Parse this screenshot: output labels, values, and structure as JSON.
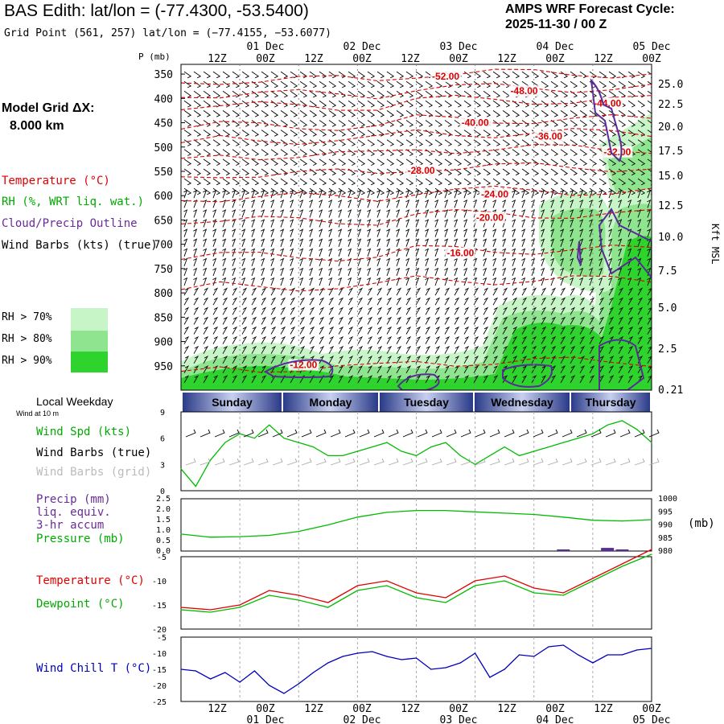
{
  "header": {
    "title": "BAS Edith:  lat/lon = (-77.4300, -53.5400)",
    "subtitle": "Grid Point (561, 257) lat/lon = (−77.4155, −53.6077)",
    "cycle_label": "AMPS WRF Forecast Cycle:",
    "cycle_value": "2025-11-30 / 00  Z"
  },
  "legend": {
    "grid_label": "Model Grid ΔX:",
    "grid_value": "8.000 km",
    "temperature": "Temperature (°C)",
    "rh": "RH (%, WRT liq. wat.)",
    "cloud": "Cloud/Precip Outline",
    "wind": "Wind Barbs (kts) (true)",
    "rh70": "RH > 70%",
    "rh80": "RH > 80%",
    "rh90": "RH > 90%"
  },
  "colors": {
    "temp": "#dd0000",
    "dew": "#00bb00",
    "precip": "#5a2a9a",
    "windchill": "#0000bb",
    "rh70": "#c8f5c8",
    "rh80": "#8fe48f",
    "rh90": "#2ed32e",
    "grid": "#aaaaaa",
    "band_dark": "#2a3a88",
    "band_light": "#c8d0f0"
  },
  "time_axis": {
    "top_hours": [
      "12Z",
      "00Z",
      "12Z",
      "00Z",
      "12Z",
      "00Z",
      "12Z",
      "00Z",
      "12Z",
      "00Z"
    ],
    "top_dates": [
      "01 Dec",
      "02 Dec",
      "03 Dec",
      "04 Dec",
      "05 Dec"
    ],
    "bottom_hours": [
      "12Z",
      "00Z",
      "12Z",
      "00Z",
      "12Z",
      "00Z",
      "12Z",
      "00Z",
      "12Z",
      "00Z"
    ],
    "bottom_dates": [
      "01 Dec",
      "02 Dec",
      "03 Dec",
      "04 Dec",
      "05 Dec"
    ]
  },
  "weekday": {
    "title": "Local Weekday",
    "days": [
      "Sunday",
      "Monday",
      "Tuesday",
      "Wednesday",
      "Thursday"
    ]
  },
  "panels": {
    "sfc_wind_sub": "Wind at 10 m",
    "wind_spd": "Wind Spd (kts)",
    "wind_barbs_true": "Wind Barbs (true)",
    "wind_barbs_grid": "Wind Barbs (grid)",
    "precip_l1": "Precip (mm)",
    "precip_l2": "liq. equiv.",
    "precip_l3": "3-hr accum",
    "pressure": "Pressure (mb)",
    "pressure_unit": "(mb)",
    "temperature": "Temperature (°C)",
    "dewpoint": "Dewpoint (°C)",
    "windchill": "Wind Chill T (°C)"
  },
  "chart_data": [
    {
      "type": "contour",
      "name": "time-height cross section",
      "ylabel_left": "P (mb)",
      "ylabel_right": "Kft MSL",
      "pressure_ticks": [
        350,
        400,
        450,
        500,
        550,
        600,
        650,
        700,
        750,
        800,
        850,
        900,
        950
      ],
      "height_ticks": [
        "25.0",
        "22.5",
        "20.0",
        "17.5",
        "15.0",
        "12.5",
        "10.0",
        "7.5",
        "5.0",
        "2.5",
        "0.21"
      ],
      "temperature_contours": [
        {
          "label": "-52.00",
          "x_h": 54,
          "p": 355
        },
        {
          "label": "-48.00",
          "x_h": 70,
          "p": 385
        },
        {
          "label": "-44.00",
          "x_h": 87,
          "p": 410
        },
        {
          "label": "-40.00",
          "x_h": 60,
          "p": 450
        },
        {
          "label": "-36.00",
          "x_h": 75,
          "p": 478
        },
        {
          "label": "-32.00",
          "x_h": 89,
          "p": 510
        },
        {
          "label": "-28.00",
          "x_h": 49,
          "p": 548
        },
        {
          "label": "-24.00",
          "x_h": 64,
          "p": 597
        },
        {
          "label": "-20.00",
          "x_h": 63,
          "p": 645
        },
        {
          "label": "-16.00",
          "x_h": 57,
          "p": 718
        },
        {
          "label": "-12.00",
          "x_h": 25,
          "p": 948
        }
      ]
    },
    {
      "type": "line",
      "name": "wind speed",
      "ylabel": "Wind Spd (kts)",
      "ylim": [
        0,
        9
      ],
      "yticks": [
        0,
        3,
        6,
        9
      ],
      "x_hours": [
        0,
        3,
        6,
        9,
        12,
        15,
        18,
        21,
        24,
        27,
        30,
        33,
        36,
        39,
        42,
        45,
        48,
        51,
        54,
        57,
        60,
        63,
        66,
        69,
        72,
        75,
        78,
        81,
        84,
        87,
        90,
        93,
        96
      ],
      "values": [
        2.5,
        0.5,
        3.5,
        5.5,
        6.5,
        6,
        7.5,
        6,
        5.5,
        5,
        4,
        4,
        4.5,
        5,
        5.5,
        4.5,
        4,
        5,
        5.5,
        4,
        3,
        4,
        5,
        4,
        4.5,
        5,
        5.5,
        6,
        6.5,
        7.5,
        8,
        7,
        5.5
      ]
    },
    {
      "type": "line",
      "name": "pressure and precip",
      "ylim_left": [
        0.0,
        2.5
      ],
      "yticks_left": [
        "0.0",
        "0.5",
        "1.0",
        "1.5",
        "2.0",
        "2.5"
      ],
      "ylim_right": [
        980,
        1000
      ],
      "yticks_right": [
        980,
        985,
        990,
        995,
        1000
      ],
      "x_hours": [
        0,
        6,
        12,
        18,
        24,
        30,
        36,
        42,
        48,
        54,
        60,
        66,
        72,
        78,
        84,
        90,
        96
      ],
      "pressure": [
        986.5,
        985.3,
        985.5,
        986,
        987.5,
        990,
        993,
        994.8,
        995.5,
        995.5,
        995,
        994.5,
        994,
        993,
        991.8,
        991.5,
        992
      ],
      "precip": [
        {
          "hour": 78,
          "value": 0.02
        },
        {
          "hour": 87,
          "value": 0.15
        },
        {
          "hour": 90,
          "value": 0.05
        }
      ]
    },
    {
      "type": "line",
      "name": "temperature and dewpoint",
      "ylim": [
        -20,
        -5
      ],
      "yticks": [
        -20,
        -15,
        -10,
        -5
      ],
      "x_hours": [
        0,
        6,
        12,
        18,
        24,
        30,
        36,
        42,
        48,
        54,
        60,
        66,
        72,
        78,
        84,
        90,
        96
      ],
      "temperature": [
        -15.5,
        -16,
        -15,
        -12,
        -13,
        -14.5,
        -11,
        -10,
        -12.5,
        -13.5,
        -10,
        -9,
        -11.5,
        -12.5,
        -9.5,
        -6.5,
        -3.5
      ],
      "dewpoint": [
        -16,
        -16.5,
        -15.5,
        -13,
        -14,
        -15.5,
        -12,
        -11,
        -13.5,
        -14.5,
        -11,
        -10,
        -12.5,
        -13,
        -10,
        -7,
        -4.5
      ]
    },
    {
      "type": "line",
      "name": "wind chill",
      "ylabel": "Wind Chill T (°C)",
      "ylim": [
        -25,
        -5
      ],
      "yticks": [
        -25,
        -20,
        -15,
        -10,
        -5
      ],
      "x_hours": [
        0,
        3,
        6,
        9,
        12,
        15,
        18,
        21,
        24,
        27,
        30,
        33,
        36,
        39,
        42,
        45,
        48,
        51,
        54,
        57,
        60,
        63,
        66,
        69,
        72,
        75,
        78,
        81,
        84,
        87,
        90,
        93,
        96
      ],
      "values": [
        -15,
        -15.5,
        -18,
        -16,
        -19,
        -15.5,
        -20,
        -22.5,
        -19.5,
        -16,
        -13,
        -11,
        -10,
        -9.5,
        -11,
        -12,
        -11.5,
        -15,
        -14.5,
        -13,
        -10,
        -17.5,
        -15,
        -10.5,
        -11,
        -8,
        -7.5,
        -10.5,
        -13,
        -10.5,
        -10.5,
        -9,
        -8.5
      ]
    }
  ]
}
